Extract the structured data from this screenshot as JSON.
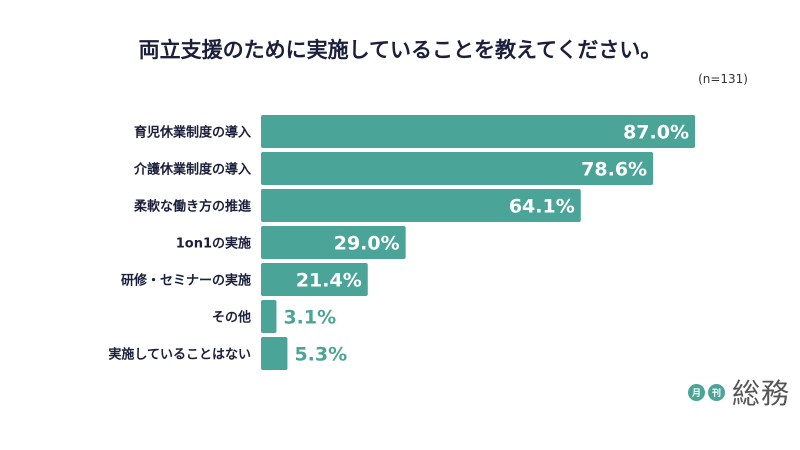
{
  "chart_data": {
    "type": "bar",
    "orientation": "horizontal",
    "title": "両立支援のために実施していることを教えてください。",
    "note": "(n=131)",
    "categories": [
      "育児休業制度の導入",
      "介護休業制度の導入",
      "柔軟な働き方の推進",
      "1on1の実施",
      "研修・セミナーの実施",
      "その他",
      "実施していることはない"
    ],
    "values": [
      87.0,
      78.6,
      64.1,
      29.0,
      21.4,
      3.1,
      5.3
    ],
    "value_labels": [
      "87.0%",
      "78.6%",
      "64.1%",
      "29.0%",
      "21.4%",
      "3.1%",
      "5.3%"
    ],
    "xlim": [
      0,
      100
    ],
    "bar_color": "#4aa497",
    "grid": false
  },
  "logo": {
    "small1": "月",
    "small2": "刊",
    "big": "総務"
  }
}
